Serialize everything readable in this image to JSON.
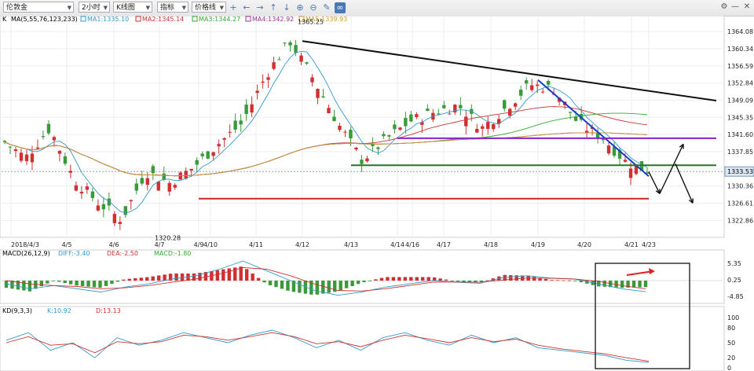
{
  "toolbar": {
    "symbol": "伦敦金",
    "period": "2小时",
    "chart_kind": "K线图",
    "indicator": "指标",
    "line_tool": "价格线",
    "icons": [
      "crosshair-icon",
      "arrow-left-icon",
      "arrow-right-icon",
      "arrow-up-icon",
      "arrow-down-icon",
      "zoom-in-icon",
      "zoom-out-icon",
      "pencil-icon",
      "link-icon"
    ],
    "window_icons": [
      "settings-icon",
      "minimize-icon",
      "close-icon"
    ]
  },
  "colors": {
    "up_candle": "#d03030",
    "down_candle": "#3a9a3a",
    "ma1": "#3399cc",
    "ma2": "#cc3333",
    "ma3": "#33aa33",
    "ma4": "#993399",
    "ma5": "#cc9933",
    "trend_black": "#111111",
    "trend_blue": "#1a3acc",
    "support_green": "#227722",
    "resist_purple": "#8822cc",
    "support_red": "#cc2222",
    "macd_pos": "#d03030",
    "macd_neg": "#3a9a3a",
    "red_arrow": "#dd2222"
  },
  "main_legend": {
    "prefix": "K",
    "params": "MA(5,55,76,123,233)",
    "ma1": "MA1:1335.10",
    "ma2": "MA2:1345.14",
    "ma3": "MA3:1344.27",
    "ma4": "MA4:1342.92",
    "ma5": "MA5:1339.93"
  },
  "macd_legend": {
    "params": "MACD(26,12,9)",
    "diff": "DIFF:-3.40",
    "dea": "DEA:-2.50",
    "macd": "MACD:-1.80"
  },
  "kd_legend": {
    "params": "KD(9,3,3)",
    "k": "K:10.92",
    "d": "D:13.13"
  },
  "chart_data": [
    {
      "type": "candlestick",
      "panel": "price",
      "y_ticks": [
        1364.08,
        1360.34,
        1356.59,
        1352.84,
        1349.09,
        1345.35,
        1341.6,
        1337.85,
        1334.1,
        1330.36,
        1326.61,
        1322.86
      ],
      "ylim": [
        1319.5,
        1366.5
      ],
      "current_price_label": "1333.53",
      "x_labels": [
        "2018/4/3",
        "4/5",
        "4/6",
        "4/7",
        "4/9",
        "4/10",
        "4/11",
        "4/12",
        "4/13",
        "4/14",
        "4/16",
        "4/17",
        "4/18",
        "4/19",
        "4/20",
        "4/21",
        "4/23"
      ],
      "annotations": [
        {
          "text": "1365.25",
          "price": 1365.25,
          "near_label": "4/12"
        },
        {
          "text": "1320.28",
          "price": 1320.28,
          "near_label": "4/7"
        }
      ],
      "close_path": [
        [
          "2018/4/3",
          1340.5
        ],
        [
          "4/5",
          1336.5
        ],
        [
          "4/5",
          1343.0
        ],
        [
          "4/6",
          1332.0
        ],
        [
          "4/6",
          1326.8
        ],
        [
          "4/7",
          1323.0
        ],
        [
          "4/7",
          1333.5
        ],
        [
          "4/9",
          1331.0
        ],
        [
          "4/10",
          1334.5
        ],
        [
          "4/10",
          1339.5
        ],
        [
          "4/11",
          1344.0
        ],
        [
          "4/11",
          1354.5
        ],
        [
          "4/12",
          1362.0
        ],
        [
          "4/12",
          1353.5
        ],
        [
          "4/12",
          1344.0
        ],
        [
          "4/13",
          1336.0
        ],
        [
          "4/13",
          1340.5
        ],
        [
          "4/14",
          1344.5
        ],
        [
          "4/16",
          1346.5
        ],
        [
          "4/17",
          1348.0
        ],
        [
          "4/18",
          1343.0
        ],
        [
          "4/18",
          1347.5
        ],
        [
          "4/19",
          1352.5
        ],
        [
          "4/19",
          1351.5
        ],
        [
          "4/20",
          1344.0
        ],
        [
          "4/20",
          1341.0
        ],
        [
          "4/21",
          1335.5
        ],
        [
          "4/23",
          1333.5
        ]
      ],
      "trendlines": [
        {
          "name": "black-resistance",
          "from": [
            "4/12",
            1362.0
          ],
          "to": [
            "beyond-4/23",
            1349.0
          ]
        },
        {
          "name": "blue-downtrend",
          "from": [
            "4/19",
            1353.5
          ],
          "to": [
            "4/23",
            1332.5
          ]
        },
        {
          "name": "purple-resistance",
          "from": [
            "4/14",
            1340.8
          ],
          "to": [
            "beyond-4/23",
            1340.8
          ]
        },
        {
          "name": "green-support",
          "from": [
            "4/13",
            1334.9
          ],
          "to": [
            "beyond-4/23",
            1334.9
          ]
        },
        {
          "name": "red-support",
          "from": [
            "4/9",
            1327.6
          ],
          "to": [
            "4/23",
            1327.6
          ]
        }
      ]
    },
    {
      "type": "bar",
      "panel": "macd",
      "y_ticks": [
        5.35,
        0.25,
        -4.85
      ],
      "ylim": [
        -6.5,
        7.0
      ],
      "diff_path": [
        -1.0,
        -2.5,
        -1.5,
        -2.5,
        -3.5,
        -2.0,
        -1.0,
        0.5,
        1.5,
        3.5,
        6.0,
        3.0,
        0.0,
        -3.0,
        -4.5,
        -3.5,
        -2.0,
        -1.0,
        0.0,
        -0.5,
        -0.8,
        1.0,
        1.5,
        0.8,
        0.5,
        -1.0,
        -2.5,
        -3.4
      ],
      "dea_path": [
        0.0,
        -1.0,
        -1.5,
        -1.8,
        -2.5,
        -2.2,
        -1.5,
        -0.5,
        0.5,
        2.0,
        4.0,
        3.5,
        1.5,
        -1.0,
        -3.0,
        -3.2,
        -2.5,
        -1.5,
        -0.5,
        -0.4,
        -0.5,
        0.2,
        0.8,
        0.7,
        0.5,
        -0.2,
        -1.5,
        -2.5
      ]
    },
    {
      "type": "line",
      "panel": "kd",
      "y_ticks": [
        100,
        80,
        50,
        20,
        0
      ],
      "ylim": [
        0,
        100
      ],
      "k_path": [
        55,
        70,
        35,
        50,
        20,
        60,
        45,
        55,
        70,
        60,
        50,
        65,
        75,
        60,
        40,
        55,
        35,
        60,
        70,
        55,
        45,
        65,
        50,
        60,
        40,
        35,
        30,
        25,
        15,
        10.92
      ],
      "d_path": [
        50,
        62,
        45,
        48,
        30,
        52,
        48,
        52,
        65,
        62,
        55,
        62,
        70,
        62,
        48,
        52,
        42,
        55,
        65,
        58,
        50,
        60,
        52,
        57,
        45,
        38,
        33,
        28,
        20,
        13.13
      ]
    }
  ]
}
